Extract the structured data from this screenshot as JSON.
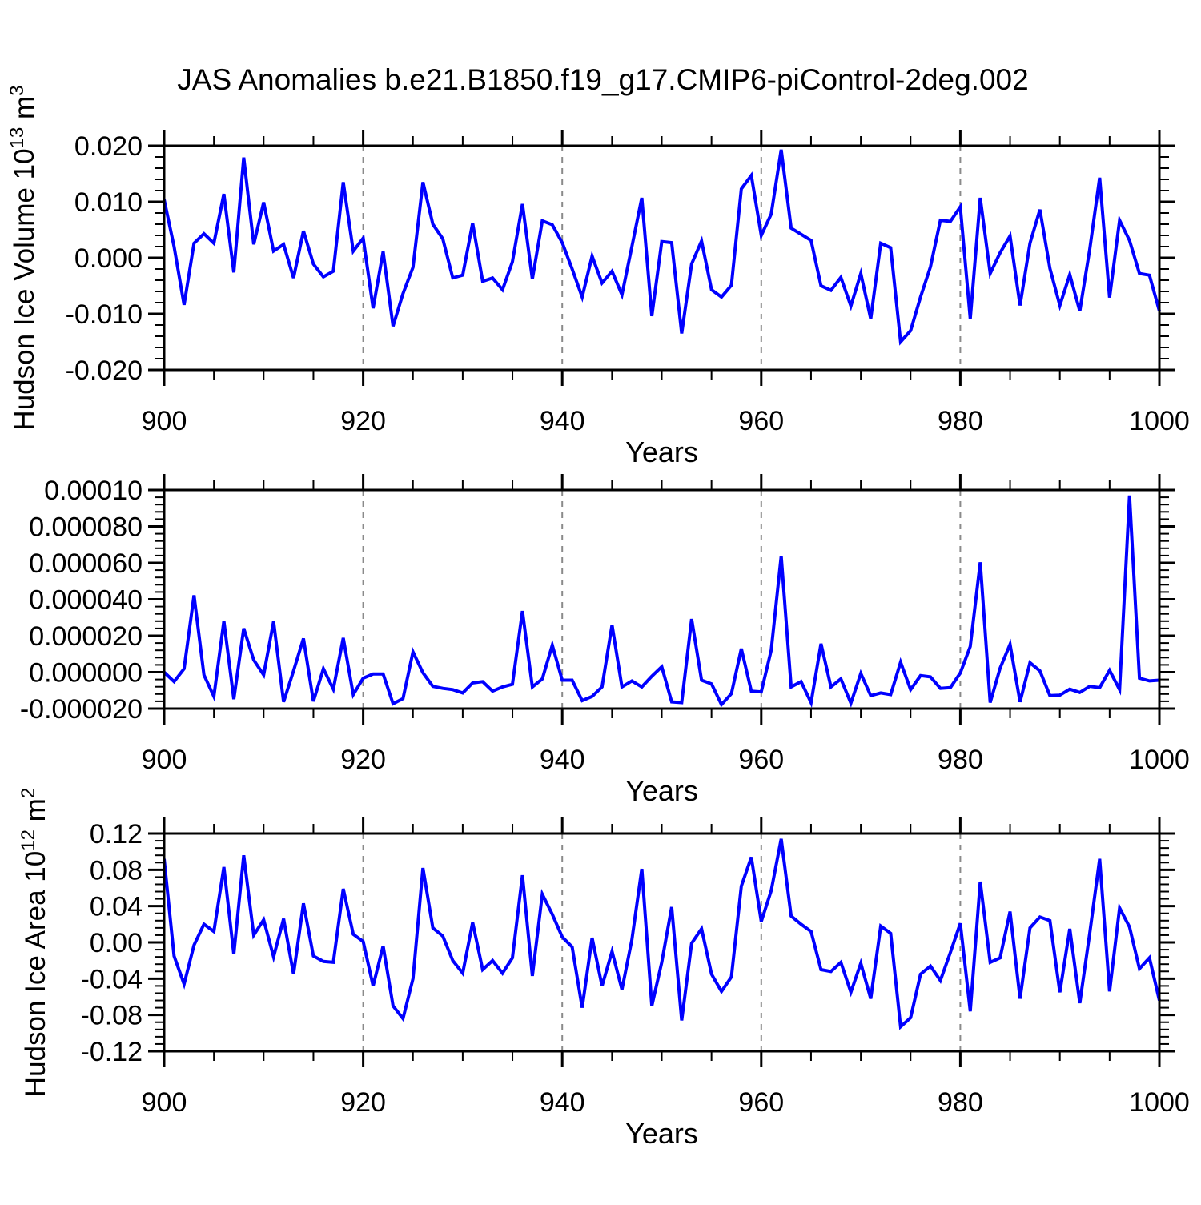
{
  "title": "JAS Anomalies b.e21.B1850.f19_g17.CMIP6-piControl-2deg.002",
  "panel1": {
    "ylabel_prefix": "Hudson Ice Volume 10",
    "ylabel_exp": "13",
    "ylabel_unit": " m",
    "ylabel_unit_exp": "3",
    "ytick_labels": [
      "0.020",
      "0.010",
      "0.000",
      "-0.010",
      "-0.020"
    ]
  },
  "panel2": {
    "ytick_labels": [
      "0.00010",
      "0.000080",
      "0.000060",
      "0.000040",
      "0.000020",
      "0.000000",
      "-0.000020"
    ]
  },
  "panel3": {
    "ylabel_prefix": "Hudson Ice Area 10",
    "ylabel_exp": "12",
    "ylabel_unit": " m",
    "ylabel_unit_exp": "2",
    "ytick_labels": [
      "0.12",
      "0.08",
      "0.04",
      "0.00",
      "-0.04",
      "-0.08",
      "-0.12"
    ]
  },
  "x_axis": {
    "label": "Years",
    "tick_labels": [
      "900",
      "920",
      "940",
      "960",
      "980",
      "1000"
    ]
  },
  "colors": {
    "line": "#0000ff",
    "grid": "#8a8a8a",
    "frame": "#000000"
  },
  "chart_data": {
    "type": "line",
    "title": "JAS Anomalies b.e21.B1850.f19_g17.CMIP6-piControl-2deg.002",
    "xlabel": "Years",
    "x_range": [
      900,
      1000
    ],
    "x_step": 1,
    "legend": "none",
    "grid": {
      "vertical_dashed_at": [
        920,
        940,
        960,
        980
      ]
    },
    "years": [
      900,
      901,
      902,
      903,
      904,
      905,
      906,
      907,
      908,
      909,
      910,
      911,
      912,
      913,
      914,
      915,
      916,
      917,
      918,
      919,
      920,
      921,
      922,
      923,
      924,
      925,
      926,
      927,
      928,
      929,
      930,
      931,
      932,
      933,
      934,
      935,
      936,
      937,
      938,
      939,
      940,
      941,
      942,
      943,
      944,
      945,
      946,
      947,
      948,
      949,
      950,
      951,
      952,
      953,
      954,
      955,
      956,
      957,
      958,
      959,
      960,
      961,
      962,
      963,
      964,
      965,
      966,
      967,
      968,
      969,
      970,
      971,
      972,
      973,
      974,
      975,
      976,
      977,
      978,
      979,
      980,
      981,
      982,
      983,
      984,
      985,
      986,
      987,
      988,
      989,
      990,
      991,
      992,
      993,
      994,
      995,
      996,
      997,
      998,
      999,
      1000
    ],
    "panels": [
      {
        "name": "Hudson Ice Volume anomaly",
        "ylabel": "Hudson Ice Volume 10^13 m^3",
        "ylim": [
          -0.02,
          0.02
        ],
        "ytick_major": 0.01,
        "ytick_minor": 0.002,
        "values": [
          0.0104,
          0.002,
          -0.0084,
          0.0026,
          0.0043,
          0.0026,
          0.0114,
          -0.0026,
          0.0179,
          0.0024,
          0.0099,
          0.0012,
          0.0024,
          -0.0036,
          0.0048,
          -0.0011,
          -0.0034,
          -0.0024,
          0.0135,
          0.0012,
          0.0035,
          -0.009,
          0.0011,
          -0.0122,
          -0.0064,
          -0.0017,
          0.0135,
          0.006,
          0.0034,
          -0.0036,
          -0.0031,
          0.0062,
          -0.0042,
          -0.0036,
          -0.0057,
          -0.0007,
          0.0096,
          -0.0038,
          0.0066,
          0.0059,
          0.0027,
          -0.002,
          -0.007,
          0.0003,
          -0.0045,
          -0.0024,
          -0.0066,
          0.002,
          0.0107,
          -0.0104,
          0.0029,
          0.0027,
          -0.0135,
          -0.0011,
          0.003,
          -0.0057,
          -0.007,
          -0.0049,
          0.0123,
          0.0147,
          0.004,
          0.0078,
          0.0193,
          0.0053,
          0.0042,
          0.0031,
          -0.005,
          -0.0058,
          -0.0035,
          -0.0086,
          -0.0028,
          -0.0109,
          0.0026,
          0.0018,
          -0.015,
          -0.013,
          -0.007,
          -0.0016,
          0.0067,
          0.0065,
          0.0091,
          -0.0109,
          0.0107,
          -0.0028,
          0.0009,
          0.0039,
          -0.0085,
          0.0026,
          0.0086,
          -0.0019,
          -0.0085,
          -0.003,
          -0.0095,
          0.0015,
          0.0143,
          -0.0071,
          0.0067,
          0.0031,
          -0.0028,
          -0.0031,
          -0.0095
        ]
      },
      {
        "name": "unlabeled middle panel anomaly",
        "ylabel": "",
        "ylim": [
          -2e-05,
          0.0001
        ],
        "ytick_major": 2e-05,
        "ytick_minor": 4e-06,
        "values": [
          0.0,
          -5.2e-06,
          1.9e-06,
          4.22e-05,
          -1.5e-06,
          -1.33e-05,
          2.81e-05,
          -1.48e-05,
          2.4e-05,
          6.7e-06,
          -1.5e-06,
          2.78e-05,
          -1.63e-05,
          7e-07,
          1.85e-05,
          -1.6e-05,
          1.9e-06,
          -9.3e-06,
          1.88e-05,
          -1.23e-05,
          -3.3e-06,
          -1e-06,
          -1e-06,
          -1.73e-05,
          -1.45e-05,
          1.11e-05,
          -3e-07,
          -7.8e-06,
          -8.9e-06,
          -9.6e-06,
          -1.14e-05,
          -5.9e-06,
          -5.2e-06,
          -1.04e-05,
          -8.1e-06,
          -6.7e-06,
          3.36e-05,
          -8.1e-06,
          -3.7e-06,
          1.48e-05,
          -4.4e-06,
          -4.4e-06,
          -1.56e-05,
          -1.33e-05,
          -8.1e-06,
          2.59e-05,
          -8.1e-06,
          -4.8e-06,
          -8.1e-06,
          -2.2e-06,
          3e-06,
          -1.63e-05,
          -1.67e-05,
          2.92e-05,
          -4.4e-06,
          -6.4e-06,
          -1.78e-05,
          -1.18e-05,
          1.29e-05,
          -1.04e-05,
          -1.08e-05,
          1.2e-05,
          6.37e-05,
          -8.1e-06,
          -5.2e-06,
          -1.67e-05,
          1.56e-05,
          -8.1e-06,
          -3.7e-06,
          -1.7e-05,
          -7e-07,
          -1.29e-05,
          -1.14e-05,
          -1.23e-05,
          5.5e-06,
          -9.6e-06,
          -1.9e-06,
          -2.6e-06,
          -8.9e-06,
          -8.5e-06,
          -4e-07,
          1.41e-05,
          6.03e-05,
          -1.67e-05,
          2.2e-06,
          1.53e-05,
          -1.63e-05,
          5.2e-06,
          7e-07,
          -1.29e-05,
          -1.26e-05,
          -9.3e-06,
          -1.11e-05,
          -7.8e-06,
          -8.5e-06,
          1e-06,
          -9.6e-06,
          9.7e-05,
          -3.3e-06,
          -4.8e-06,
          -4.4e-06
        ]
      },
      {
        "name": "Hudson Ice Area anomaly",
        "ylabel": "Hudson Ice Area 10^12 m^2",
        "ylim": [
          -0.12,
          0.12
        ],
        "ytick_major": 0.04,
        "ytick_minor": 0.008,
        "values": [
          0.092,
          -0.015,
          -0.046,
          -0.003,
          0.02,
          0.012,
          0.083,
          -0.013,
          0.096,
          0.008,
          0.025,
          -0.016,
          0.026,
          -0.035,
          0.043,
          -0.015,
          -0.021,
          -0.022,
          0.059,
          0.009,
          0.001,
          -0.048,
          -0.004,
          -0.07,
          -0.084,
          -0.04,
          0.082,
          0.016,
          0.007,
          -0.02,
          -0.034,
          0.022,
          -0.03,
          -0.02,
          -0.034,
          -0.017,
          0.074,
          -0.037,
          0.053,
          0.031,
          0.006,
          -0.005,
          -0.072,
          0.005,
          -0.048,
          -0.01,
          -0.052,
          0.003,
          0.081,
          -0.07,
          -0.022,
          0.039,
          -0.086,
          -0.001,
          0.015,
          -0.035,
          -0.054,
          -0.038,
          0.062,
          0.094,
          0.023,
          0.057,
          0.114,
          0.029,
          0.02,
          0.012,
          -0.03,
          -0.032,
          -0.022,
          -0.055,
          -0.023,
          -0.062,
          0.018,
          0.01,
          -0.093,
          -0.083,
          -0.035,
          -0.026,
          -0.042,
          -0.011,
          0.021,
          -0.076,
          0.067,
          -0.022,
          -0.017,
          0.034,
          -0.062,
          0.016,
          0.028,
          0.024,
          -0.055,
          0.015,
          -0.067,
          0.01,
          0.092,
          -0.054,
          0.038,
          0.017,
          -0.029,
          -0.017,
          -0.064
        ]
      }
    ]
  }
}
